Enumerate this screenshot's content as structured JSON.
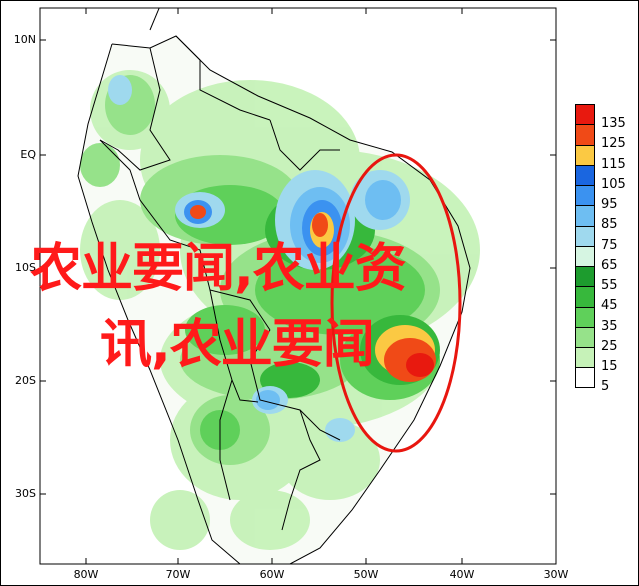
{
  "map": {
    "lat_labels": [
      "10N",
      "EQ",
      "10S",
      "20S",
      "30S"
    ],
    "lon_labels": [
      "80W",
      "70W",
      "60W",
      "50W",
      "40W",
      "30W"
    ]
  },
  "legend": {
    "items": [
      {
        "value": "135",
        "color": "#e8190f"
      },
      {
        "value": "125",
        "color": "#f04a17"
      },
      {
        "value": "115",
        "color": "#fbc943"
      },
      {
        "value": "105",
        "color": "#1a66e0"
      },
      {
        "value": "95",
        "color": "#3b92f0"
      },
      {
        "value": "85",
        "color": "#6ebef2"
      },
      {
        "value": "75",
        "color": "#9fd9ee"
      },
      {
        "value": "65",
        "color": "#d6f5e2"
      },
      {
        "value": "55",
        "color": "#1d9c2e"
      },
      {
        "value": "45",
        "color": "#37b83c"
      },
      {
        "value": "35",
        "color": "#5fd05a"
      },
      {
        "value": "25",
        "color": "#96e28a"
      },
      {
        "value": "15",
        "color": "#c6f2b8"
      },
      {
        "value": "5",
        "color": "#ffffff"
      }
    ]
  },
  "overlay": {
    "line1": "农业要闻,农业资",
    "line2": "讯,农业要闻"
  },
  "annotation": {
    "circle_color": "#e8160f"
  }
}
